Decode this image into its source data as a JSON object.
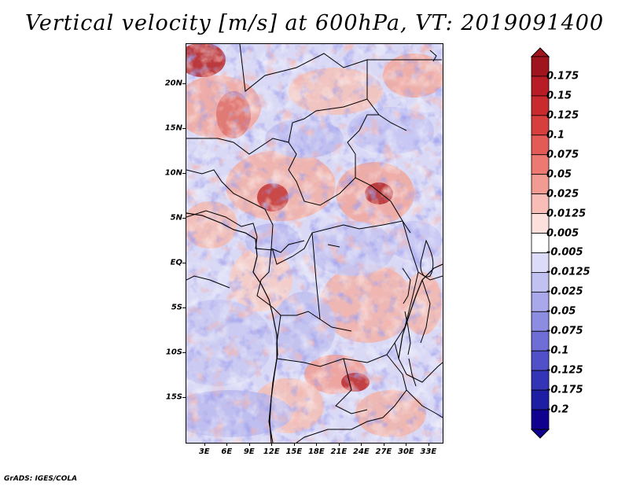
{
  "title": "Vertical velocity [m/s] at 600hPa, VT: 2019091400",
  "credit": "GrADS: IGES/COLA",
  "map": {
    "lat_labels": [
      "20N",
      "15N",
      "10N",
      "5N",
      "EQ",
      "5S",
      "10S",
      "15S"
    ],
    "lat_values": [
      20,
      15,
      10,
      5,
      0,
      -5,
      -10,
      -15
    ],
    "lon_labels": [
      "3E",
      "6E",
      "9E",
      "12E",
      "15E",
      "18E",
      "21E",
      "24E",
      "27E",
      "30E",
      "33E"
    ],
    "lon_values": [
      3,
      6,
      9,
      12,
      15,
      18,
      21,
      24,
      27,
      30,
      33
    ],
    "lat_range": [
      -20,
      24.5
    ],
    "lon_range": [
      0.5,
      34.8
    ],
    "field": "vertical velocity",
    "level": "600hPa",
    "valid_time": "2019091400"
  },
  "colorbar": {
    "labels": [
      "0.175",
      "0.15",
      "0.125",
      "0.1",
      "0.075",
      "0.05",
      "0.025",
      "0.0125",
      "0.005",
      "-0.005",
      "-0.0125",
      "-0.025",
      "-0.05",
      "-0.075",
      "-0.1",
      "-0.125",
      "-0.175",
      "-0.2"
    ],
    "colors": [
      "#a0141e",
      "#b81c24",
      "#c82a2e",
      "#d73e3e",
      "#e45a56",
      "#ec7a72",
      "#f29b92",
      "#f7bdb6",
      "#fbe0dc",
      "#ffffff",
      "#dcdcf8",
      "#c2c2f2",
      "#a8a8ea",
      "#8c8ce0",
      "#6e6ed6",
      "#5050c8",
      "#3434b6",
      "#1e1ea4",
      "#100090"
    ]
  }
}
